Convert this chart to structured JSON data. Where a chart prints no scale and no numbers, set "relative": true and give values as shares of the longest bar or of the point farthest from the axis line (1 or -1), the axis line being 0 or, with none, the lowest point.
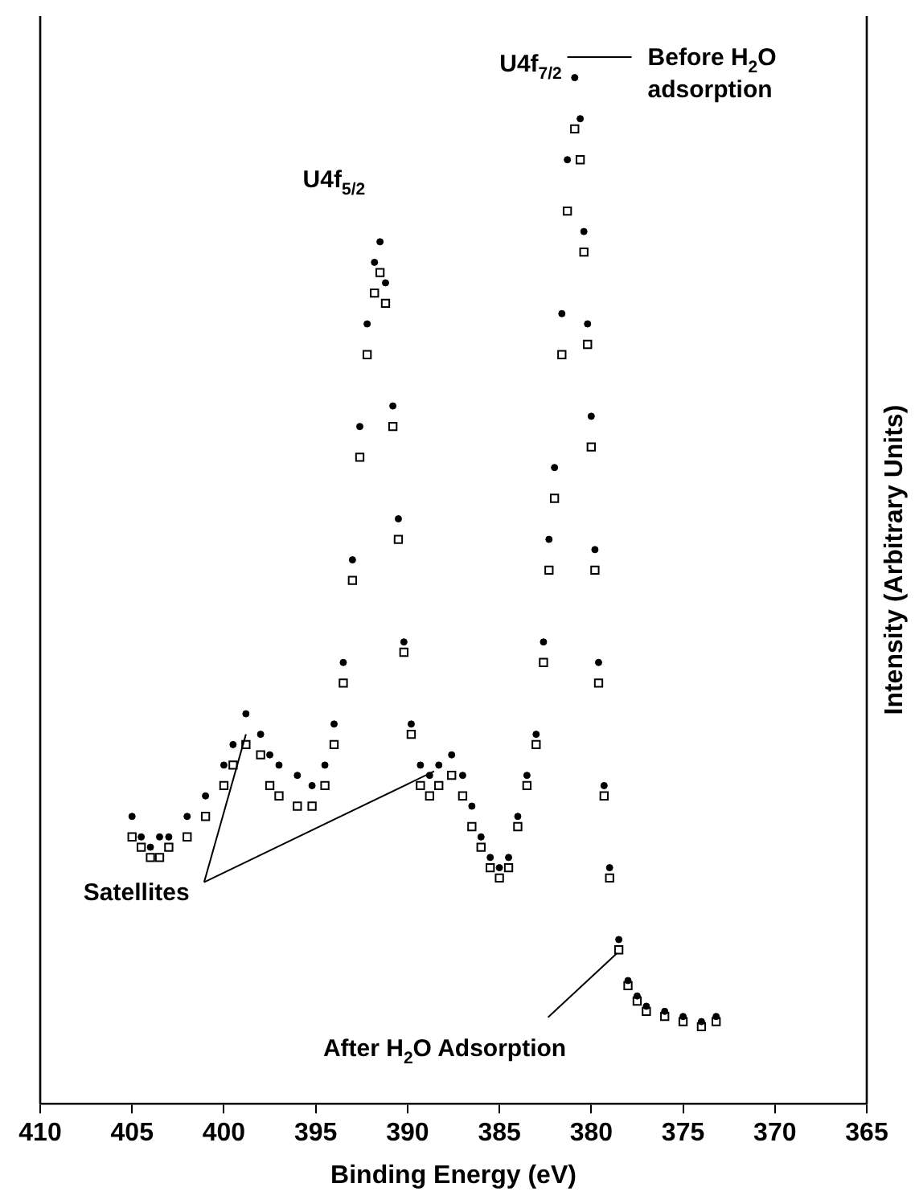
{
  "chart_data": {
    "type": "scatter",
    "xlabel": "Binding Energy (eV)",
    "ylabel": "Intensity (Arbitrary Units)",
    "relative": true,
    "xlim": [
      410,
      365
    ],
    "xticks": [
      410,
      405,
      400,
      395,
      390,
      385,
      380,
      375,
      370,
      365
    ],
    "x": [
      405,
      404.5,
      404,
      403.5,
      403,
      402,
      401,
      400,
      399.5,
      398.8,
      398,
      397.5,
      397,
      396,
      395.2,
      394.5,
      394,
      393.5,
      393,
      392.6,
      392.2,
      391.8,
      391.5,
      391.2,
      390.8,
      390.5,
      390.2,
      389.8,
      389.3,
      388.8,
      388.3,
      387.6,
      387,
      386.5,
      386,
      385.5,
      385,
      384.5,
      384,
      383.5,
      383,
      382.6,
      382.3,
      382,
      381.6,
      381.3,
      380.9,
      380.6,
      380.4,
      380.2,
      380,
      379.8,
      379.6,
      379.3,
      379,
      378.5,
      378,
      377.5,
      377,
      376,
      375,
      374,
      373.2
    ],
    "series": [
      {
        "color": "#000000",
        "marker": "circle",
        "values": [
          0.28,
          0.26,
          0.25,
          0.26,
          0.26,
          0.28,
          0.3,
          0.33,
          0.35,
          0.38,
          0.36,
          0.34,
          0.33,
          0.32,
          0.31,
          0.33,
          0.37,
          0.43,
          0.53,
          0.66,
          0.76,
          0.82,
          0.84,
          0.8,
          0.68,
          0.57,
          0.45,
          0.37,
          0.33,
          0.32,
          0.33,
          0.34,
          0.32,
          0.29,
          0.26,
          0.24,
          0.23,
          0.24,
          0.28,
          0.32,
          0.36,
          0.45,
          0.55,
          0.62,
          0.77,
          0.92,
          1.0,
          0.96,
          0.85,
          0.76,
          0.67,
          0.54,
          0.43,
          0.31,
          0.23,
          0.16,
          0.12,
          0.105,
          0.095,
          0.09,
          0.085,
          0.08,
          0.085
        ]
      },
      {
        "color": "#000000",
        "marker": "square",
        "values": [
          0.26,
          0.25,
          0.24,
          0.24,
          0.25,
          0.26,
          0.28,
          0.31,
          0.33,
          0.35,
          0.34,
          0.31,
          0.3,
          0.29,
          0.29,
          0.31,
          0.35,
          0.41,
          0.51,
          0.63,
          0.73,
          0.79,
          0.81,
          0.78,
          0.66,
          0.55,
          0.44,
          0.36,
          0.31,
          0.3,
          0.31,
          0.32,
          0.3,
          0.27,
          0.25,
          0.23,
          0.22,
          0.23,
          0.27,
          0.31,
          0.35,
          0.43,
          0.52,
          0.59,
          0.73,
          0.87,
          0.95,
          0.92,
          0.83,
          0.74,
          0.64,
          0.52,
          0.41,
          0.3,
          0.22,
          0.15,
          0.115,
          0.1,
          0.09,
          0.085,
          0.08,
          0.075,
          0.08
        ]
      }
    ],
    "annotations": [
      {
        "text": "U4f$_{5/2}$",
        "x": 391.5,
        "y": 0.84
      },
      {
        "text": "U4f$_{7/2}$",
        "x": 380.9,
        "y": 1.0
      },
      "Before H$_{2}$O\nadsorption",
      {
        "text": "Satellites",
        "x": 398.8,
        "y": 0.36
      },
      {
        "text": "After H$_{2}$O Adsorption",
        "x": 378.5,
        "y": 0.15
      }
    ],
    "grid": false
  }
}
